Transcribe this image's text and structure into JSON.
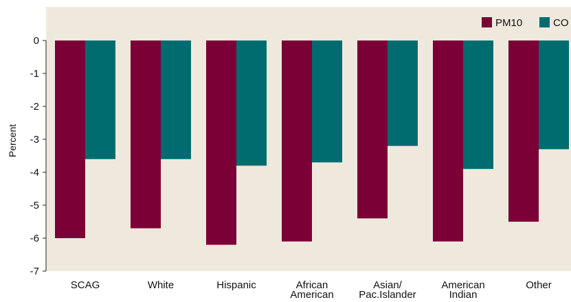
{
  "chart_data": {
    "type": "bar",
    "title": "",
    "xlabel": "",
    "ylabel": "Percent",
    "ylim": [
      -7,
      0
    ],
    "yticks": [
      0,
      -1,
      -2,
      -3,
      -4,
      -5,
      -6,
      -7
    ],
    "grid": false,
    "legend_position": "top-right",
    "categories": [
      [
        "SCAG"
      ],
      [
        "White"
      ],
      [
        "Hispanic"
      ],
      [
        "African",
        "American"
      ],
      [
        "Asian/",
        "Pac.Islander"
      ],
      [
        "American",
        "Indian"
      ],
      [
        "Other"
      ]
    ],
    "series": [
      {
        "name": "PM10",
        "color": "#7a0036",
        "values": [
          -6.0,
          -5.7,
          -6.2,
          -6.1,
          -5.4,
          -6.1,
          -5.5
        ]
      },
      {
        "name": "CO",
        "color": "#006c70",
        "values": [
          -3.6,
          -3.6,
          -3.8,
          -3.7,
          -3.2,
          -3.9,
          -3.3
        ]
      }
    ]
  },
  "style": {
    "plot_background": "#efe9dd",
    "axis_color": "#222222"
  }
}
